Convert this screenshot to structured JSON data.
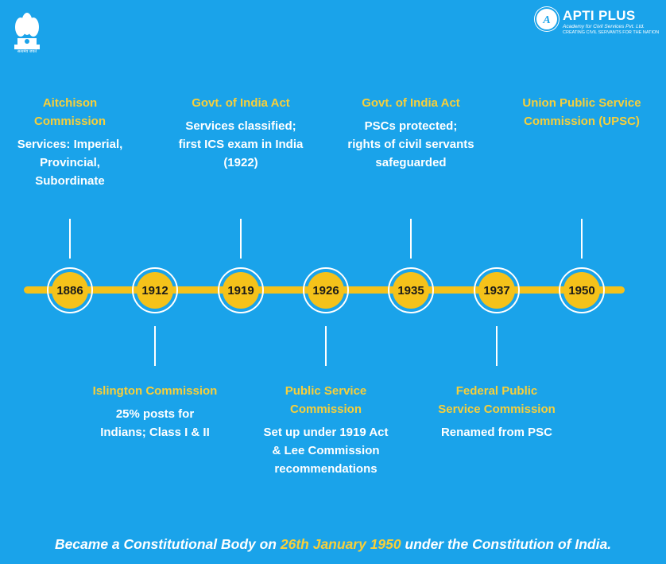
{
  "header": {
    "emblem_caption": "सत्यमेव जयते",
    "brand_name": "APTI PLUS",
    "brand_subtitle": "Academy for Civil Services Pvt. Ltd.",
    "brand_tagline": "CREATING CIVIL SERVANTS FOR THE NATION"
  },
  "timeline": [
    {
      "year": "1886",
      "position": "up",
      "title": "Aitchison Commission",
      "desc": "Services: Imperial, Provincial, Subordinate"
    },
    {
      "year": "1912",
      "position": "down",
      "title": "Islington Commission",
      "desc": "25% posts for Indians; Class I & II"
    },
    {
      "year": "1919",
      "position": "up",
      "title": "Govt. of India Act",
      "desc": "Services classified; first ICS exam in India (1922)"
    },
    {
      "year": "1926",
      "position": "down",
      "title": "Public Service Commission",
      "desc": "Set up under 1919 Act & Lee Commission recommendations"
    },
    {
      "year": "1935",
      "position": "up",
      "title": "Govt. of India Act",
      "desc": "PSCs protected; rights of civil servants safeguarded"
    },
    {
      "year": "1937",
      "position": "down",
      "title": "Federal Public Service Commission",
      "desc": "Renamed from PSC"
    },
    {
      "year": "1950",
      "position": "up",
      "title": "Union Public Service Commission (UPSC)",
      "desc": ""
    }
  ],
  "footer": {
    "before": "Became a Constitutional Body on ",
    "highlight": "26th January 1950",
    "after": " under the Constitution of India."
  },
  "colors": {
    "background": "#1aa3ea",
    "accent": "#f5c21a",
    "title_text": "#f7cf3a",
    "body_text": "#ffffff"
  }
}
